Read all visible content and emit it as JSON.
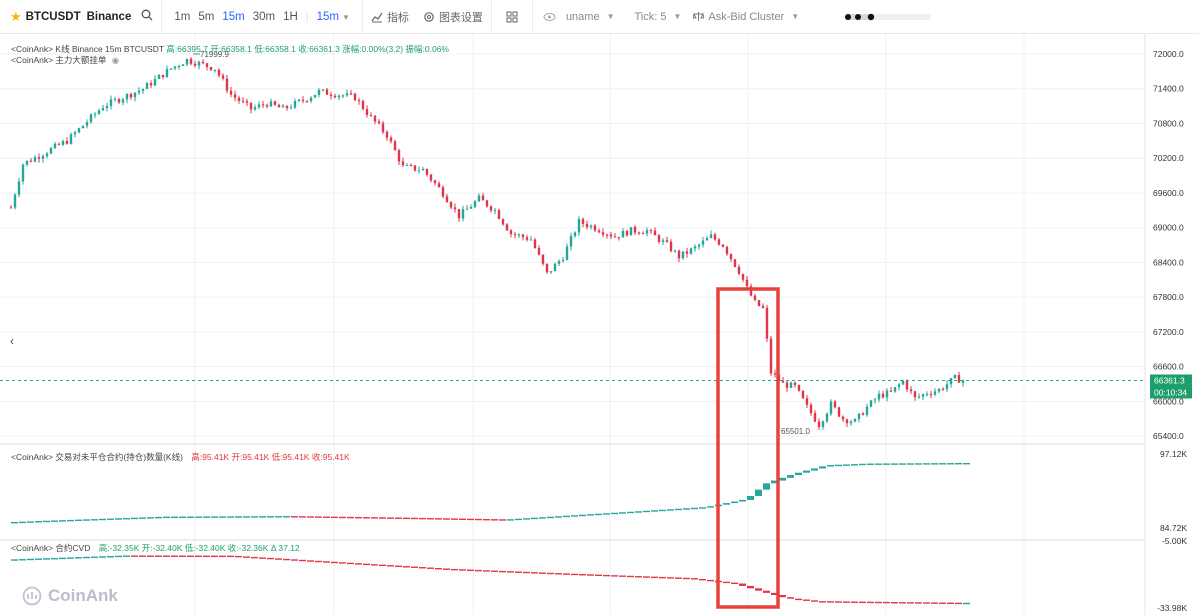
{
  "toolbar": {
    "symbol": "BTCUSDT",
    "exchange": "Binance",
    "intervals": [
      "1m",
      "5m",
      "15m",
      "30m",
      "1H"
    ],
    "active_interval": "15m",
    "selected_interval": "15m",
    "indicator_label": "指标",
    "chart_settings_label": "图表设置",
    "user_label": "uname",
    "tick_label": "Tick: 5",
    "cluster_label": "Ask-Bid Cluster"
  },
  "legends": {
    "main": {
      "prefix": "<CoinAnk> K线  Binance 15m BTCUSDT",
      "high": "高:66395.7",
      "open": "开:66358.1",
      "low": "低:66358.1",
      "close": "收:66361.3",
      "change": "涨幅:0.00%(3.2)",
      "amp": "振幅:0.06%"
    },
    "main2": "<CoinAnk> 主力大额挂单",
    "oi": {
      "prefix": "<CoinAnk> 交易对未平仓合约(持仓)数量(K线)",
      "high": "高:95.41K",
      "open": "开:95.41K",
      "low": "低:95.41K",
      "close": "收:95.41K"
    },
    "cvd": {
      "prefix": "<CoinAnk> 合约CVD",
      "high": "高:-32.35K",
      "open": "开:-32.40K",
      "low": "低:-32.40K",
      "close": "收:-32.36K",
      "delta": "Δ 37.12"
    }
  },
  "price_axis": [
    "72000.0",
    "71400.0",
    "70800.0",
    "70200.0",
    "69600.0",
    "69000.0",
    "68400.0",
    "67800.0",
    "67200.0",
    "66600.0",
    "66000.0",
    "65400.0"
  ],
  "oi_axis": [
    "97.12K",
    "84.72K"
  ],
  "cvd_axis": [
    "-5.00K",
    "-33.98K"
  ],
  "current_price": "66361.3",
  "countdown": "00:10:34",
  "high_marker": "71999.9",
  "low_marker": "65501.0",
  "logo_text": "CoinAnk",
  "colors": {
    "up": "#26a69a",
    "down": "#e0354a",
    "highlight": "#e8403a",
    "current": "#1e9e6a"
  },
  "chart_data": {
    "type": "candlestick",
    "price_range": [
      65300,
      72000
    ],
    "anchors": [
      [
        0,
        69350
      ],
      [
        3,
        70100
      ],
      [
        14,
        70500
      ],
      [
        23,
        71100
      ],
      [
        33,
        71400
      ],
      [
        40,
        71750
      ],
      [
        44,
        71900
      ],
      [
        51,
        71750
      ],
      [
        55,
        71300
      ],
      [
        60,
        71050
      ],
      [
        64,
        71150
      ],
      [
        68,
        71050
      ],
      [
        73,
        71200
      ],
      [
        77,
        71350
      ],
      [
        82,
        71300
      ],
      [
        86,
        71250
      ],
      [
        90,
        70900
      ],
      [
        94,
        70600
      ],
      [
        98,
        70050
      ],
      [
        103,
        70000
      ],
      [
        108,
        69600
      ],
      [
        112,
        69200
      ],
      [
        117,
        69500
      ],
      [
        121,
        69300
      ],
      [
        125,
        68900
      ],
      [
        130,
        68800
      ],
      [
        134,
        68200
      ],
      [
        138,
        68500
      ],
      [
        142,
        69100
      ],
      [
        146,
        69000
      ],
      [
        151,
        68850
      ],
      [
        155,
        68950
      ],
      [
        159,
        68950
      ],
      [
        164,
        68700
      ],
      [
        167,
        68500
      ],
      [
        171,
        68650
      ],
      [
        175,
        68850
      ],
      [
        178,
        68700
      ],
      [
        182,
        68250
      ],
      [
        184,
        67950
      ],
      [
        186,
        67700
      ],
      [
        188,
        67600
      ],
      [
        190,
        66500
      ],
      [
        193,
        66300
      ],
      [
        196,
        66250
      ],
      [
        199,
        65900
      ],
      [
        202,
        65600
      ],
      [
        205,
        65950
      ],
      [
        208,
        65700
      ],
      [
        211,
        65650
      ],
      [
        214,
        65900
      ],
      [
        217,
        66100
      ],
      [
        220,
        66150
      ],
      [
        223,
        66350
      ],
      [
        226,
        66050
      ],
      [
        229,
        66150
      ],
      [
        232,
        66200
      ],
      [
        234,
        66300
      ],
      [
        236,
        66400
      ],
      [
        238,
        66361
      ]
    ],
    "oi_anchors": [
      [
        0,
        84.9
      ],
      [
        15,
        85.3
      ],
      [
        40,
        85.9
      ],
      [
        70,
        86.0
      ],
      [
        100,
        85.7
      ],
      [
        125,
        85.4
      ],
      [
        150,
        86.5
      ],
      [
        175,
        87.6
      ],
      [
        185,
        89.0
      ],
      [
        190,
        91.8
      ],
      [
        197,
        93.5
      ],
      [
        205,
        95.0
      ],
      [
        215,
        95.3
      ],
      [
        238,
        95.4
      ]
    ],
    "cvd_anchors": [
      [
        0,
        -12.5
      ],
      [
        30,
        -10.6
      ],
      [
        55,
        -10.7
      ],
      [
        80,
        -13.5
      ],
      [
        110,
        -16.8
      ],
      [
        140,
        -19.0
      ],
      [
        170,
        -21.0
      ],
      [
        182,
        -23.5
      ],
      [
        188,
        -26.8
      ],
      [
        195,
        -30.3
      ],
      [
        202,
        -31.6
      ],
      [
        215,
        -31.9
      ],
      [
        238,
        -32.36
      ]
    ]
  }
}
